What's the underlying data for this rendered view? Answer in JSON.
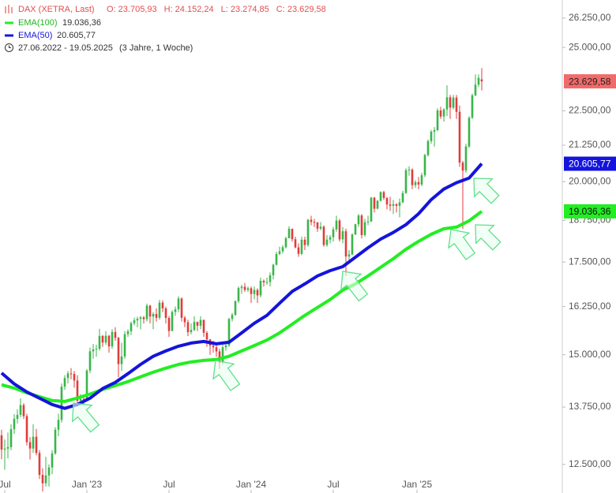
{
  "chart_data": {
    "type": "candlestick",
    "title": "DAX (XETRA, Last)",
    "header_values": [
      "O: 23.705,93",
      "H: 24.152,24",
      "L: 23.274,85",
      "C: 23.629,58"
    ],
    "date_range": "27.06.2022 - 19.05.2025",
    "period": "(3 Jahre, 1 Woche)",
    "last_label": "23.629,58",
    "last_color": "#f26a6a",
    "up_color": "#39b54a",
    "down_color": "#e03c3c",
    "log_scale": true,
    "grid": false,
    "ylim": [
      11920,
      27050
    ],
    "yticks": [
      {
        "value": 12500,
        "label": "12.500,00"
      },
      {
        "value": 13750,
        "label": "13.750,00"
      },
      {
        "value": 15000,
        "label": "15.000,00"
      },
      {
        "value": 16250,
        "label": "16.250,00"
      },
      {
        "value": 17500,
        "label": "17.500,00"
      },
      {
        "value": 18750,
        "label": "18.750,00"
      },
      {
        "value": 20000,
        "label": "20.000,00"
      },
      {
        "value": 21250,
        "label": "21.250,00"
      },
      {
        "value": 22500,
        "label": "22.500,00"
      },
      {
        "value": 25000,
        "label": "25.000,00"
      },
      {
        "value": 26250,
        "label": "26.250,00"
      }
    ],
    "xlim": [
      -0.5,
      152.5
    ],
    "xticks": [
      {
        "value": 1,
        "label": "Jul"
      },
      {
        "value": 27,
        "label": "Jan '23"
      },
      {
        "value": 53,
        "label": "Jul"
      },
      {
        "value": 79,
        "label": "Jan '24"
      },
      {
        "value": 105,
        "label": "Jul"
      },
      {
        "value": 131.5,
        "label": "Jan '25"
      }
    ],
    "open": [
      13120,
      12813,
      12833,
      12865,
      13254,
      13484,
      13573,
      13795,
      13544,
      12971,
      12834,
      13088,
      12741,
      12284,
      12114,
      12273,
      12437,
      12731,
      13243,
      13460,
      14224,
      14431,
      14541,
      14529,
      14370,
      13894,
      13940,
      13924,
      14610,
      15086,
      15133,
      15150,
      15476,
      15307,
      15482,
      15210,
      15578,
      15428,
      14768,
      14957,
      15522,
      15597,
      15808,
      15882,
      15922,
      15961,
      15914,
      16275,
      15983,
      16051,
      15950,
      16358,
      16201,
      15947,
      15603,
      16105,
      16177,
      16469,
      15952,
      15832,
      15574,
      15632,
      15840,
      15740,
      15894,
      15557,
      15387,
      15229,
      15187,
      15083,
      14798,
      15189,
      15234,
      15919,
      16029,
      16397,
      16759,
      16795,
      16706,
      16752,
      16594,
      16705,
      16555,
      16961,
      16918,
      16927,
      17117,
      17419,
      17735,
      17815,
      17936,
      18206,
      18492,
      18175,
      17930,
      17737,
      18161,
      18001,
      18773,
      18704,
      18693,
      18498,
      18557,
      18002,
      18164,
      18235,
      18476,
      18748,
      18171,
      18417,
      17661,
      17723,
      18322,
      18633,
      18906,
      18302,
      18699,
      18720,
      19474,
      19121,
      19373,
      19657,
      19464,
      19255,
      19215,
      19263,
      19211,
      19323,
      19626,
      20385,
      20405,
      19885,
      19985,
      19906,
      20215,
      20903,
      21395,
      21732,
      21787,
      22514,
      22287,
      22551,
      23009,
      22620,
      22999,
      22462,
      20642,
      20374,
      21206,
      22242,
      23087,
      23499,
      23705.93
    ],
    "high": [
      13240,
      13030,
      13180,
      13360,
      13590,
      13700,
      13950,
      13840,
      13600,
      13080,
      13360,
      13260,
      12800,
      12420,
      12660,
      12500,
      12800,
      13300,
      13600,
      14300,
      14500,
      14600,
      14670,
      14600,
      14500,
      14050,
      14030,
      14650,
      15180,
      15270,
      15250,
      15660,
      15500,
      15600,
      15500,
      15650,
      15700,
      15450,
      15300,
      15600,
      15650,
      15850,
      15950,
      15980,
      16000,
      16000,
      16330,
      16300,
      16100,
      16200,
      16430,
      16420,
      16250,
      16000,
      16150,
      16250,
      16530,
      16500,
      16000,
      15900,
      15800,
      15990,
      15850,
      15990,
      15900,
      15600,
      15400,
      15350,
      15250,
      15150,
      15250,
      15350,
      15950,
      16080,
      16420,
      16800,
      16850,
      16900,
      16800,
      16800,
      16800,
      16750,
      17050,
      17000,
      17050,
      17200,
      17450,
      17800,
      17950,
      18000,
      18250,
      18570,
      18500,
      18250,
      18050,
      18250,
      18250,
      18800,
      18900,
      18800,
      18700,
      18700,
      18600,
      18300,
      18300,
      18550,
      18900,
      18800,
      18550,
      18500,
      17850,
      18350,
      18650,
      18950,
      18950,
      18800,
      18900,
      19500,
      19500,
      19400,
      19680,
      19700,
      19500,
      19500,
      19400,
      19300,
      19450,
      19700,
      20450,
      20520,
      20450,
      20050,
      20150,
      20300,
      20950,
      21450,
      21800,
      21900,
      22600,
      22650,
      22600,
      23470,
      23100,
      23100,
      23100,
      22700,
      20700,
      21300,
      22300,
      23150,
      23900,
      23900,
      24152.24
    ],
    "low": [
      12610,
      12390,
      12625,
      12800,
      13150,
      13380,
      13520,
      13480,
      12900,
      12600,
      12740,
      12690,
      12200,
      11950,
      12050,
      12050,
      12300,
      12700,
      13100,
      13400,
      14150,
      14300,
      14400,
      14200,
      13800,
      13790,
      13800,
      13900,
      14550,
      14900,
      14950,
      15100,
      15200,
      15250,
      15050,
      15150,
      15350,
      14450,
      14600,
      14900,
      15450,
      15500,
      15750,
      15700,
      15650,
      15800,
      15850,
      15800,
      15650,
      15850,
      15900,
      16100,
      15800,
      15450,
      15600,
      16000,
      16100,
      15850,
      15700,
      15470,
      15520,
      15600,
      15600,
      15650,
      15450,
      15200,
      15000,
      15050,
      14950,
      14650,
      14750,
      15100,
      15200,
      15850,
      16000,
      16350,
      16600,
      16650,
      16650,
      16350,
      16450,
      16350,
      16500,
      16800,
      16850,
      16800,
      17000,
      17400,
      17700,
      17750,
      17900,
      18200,
      18100,
      17900,
      17650,
      17700,
      17850,
      17950,
      18600,
      18550,
      18400,
      18450,
      17950,
      17950,
      18050,
      18100,
      18400,
      18100,
      18050,
      17100,
      17500,
      17700,
      18300,
      18550,
      18200,
      18250,
      18600,
      18700,
      19000,
      19100,
      19350,
      19400,
      19100,
      19050,
      18950,
      19000,
      18850,
      19300,
      19600,
      20200,
      19750,
      19800,
      19750,
      19850,
      20150,
      20850,
      21300,
      21200,
      21750,
      22200,
      22100,
      22300,
      22200,
      22550,
      22200,
      20500,
      18490,
      20300,
      21150,
      22200,
      23050,
      23400,
      23274.85
    ],
    "close": [
      12813,
      12833,
      12865,
      13254,
      13484,
      13573,
      13795,
      13544,
      12971,
      12834,
      13088,
      12741,
      12284,
      12114,
      12273,
      12437,
      12731,
      13243,
      13460,
      14224,
      14431,
      14541,
      14529,
      14370,
      13894,
      13940,
      13924,
      14610,
      15086,
      15133,
      15150,
      15476,
      15307,
      15482,
      15210,
      15578,
      15428,
      14768,
      14957,
      15522,
      15597,
      15808,
      15882,
      15922,
      15961,
      15914,
      16275,
      15983,
      16051,
      15950,
      16358,
      16201,
      15947,
      15603,
      16105,
      16177,
      16469,
      15952,
      15832,
      15574,
      15632,
      15840,
      15740,
      15894,
      15557,
      15387,
      15229,
      15187,
      15083,
      14798,
      15189,
      15234,
      15919,
      16029,
      16397,
      16759,
      16795,
      16706,
      16752,
      16594,
      16705,
      16555,
      16961,
      16918,
      16927,
      17117,
      17419,
      17735,
      17815,
      17936,
      18206,
      18492,
      18175,
      17930,
      17737,
      18161,
      18001,
      18773,
      18704,
      18693,
      18498,
      18557,
      18002,
      18164,
      18235,
      18476,
      18748,
      18171,
      18417,
      17661,
      17723,
      18322,
      18633,
      18906,
      18302,
      18699,
      18720,
      19474,
      19121,
      19373,
      19657,
      19464,
      19255,
      19215,
      19263,
      19211,
      19323,
      19626,
      20385,
      20405,
      19885,
      19985,
      19906,
      20215,
      20903,
      21395,
      21732,
      21787,
      22514,
      22287,
      22551,
      23009,
      22620,
      22999,
      22462,
      20642,
      20374,
      21206,
      22242,
      23087,
      23499,
      23767,
      23629.58
    ],
    "series": [
      {
        "name": "EMA(100)",
        "color": "#22ee22",
        "value_label": "19.036,36",
        "x": [
          0,
          4,
          8,
          12,
          16,
          20,
          24,
          28,
          32,
          36,
          40,
          44,
          48,
          52,
          56,
          60,
          64,
          68,
          72,
          76,
          80,
          84,
          88,
          92,
          96,
          100,
          104,
          108,
          112,
          116,
          120,
          124,
          128,
          132,
          136,
          140,
          144,
          148,
          152
        ],
        "values": [
          14270,
          14190,
          14080,
          13990,
          13900,
          13880,
          13960,
          14050,
          14160,
          14250,
          14345,
          14460,
          14570,
          14670,
          14760,
          14820,
          14860,
          14880,
          14960,
          15095,
          15230,
          15370,
          15555,
          15780,
          16015,
          16225,
          16440,
          16700,
          16875,
          17100,
          17345,
          17595,
          17875,
          18110,
          18325,
          18495,
          18545,
          18740,
          19036.36
        ]
      },
      {
        "name": "EMA(50)",
        "color": "#1414dc",
        "value_label": "20.605,77",
        "x": [
          0,
          4,
          8,
          12,
          16,
          20,
          24,
          28,
          32,
          36,
          40,
          44,
          48,
          52,
          56,
          60,
          64,
          68,
          72,
          76,
          80,
          84,
          88,
          92,
          96,
          100,
          104,
          108,
          112,
          116,
          120,
          124,
          128,
          132,
          136,
          140,
          144,
          148,
          152
        ],
        "values": [
          14550,
          14290,
          14100,
          13955,
          13810,
          13720,
          13810,
          13955,
          14180,
          14325,
          14535,
          14760,
          14960,
          15095,
          15215,
          15295,
          15335,
          15275,
          15315,
          15555,
          15805,
          16015,
          16340,
          16665,
          16875,
          17100,
          17250,
          17365,
          17640,
          17920,
          18180,
          18380,
          18620,
          18960,
          19410,
          19755,
          19965,
          20120,
          20605.77
        ]
      }
    ]
  }
}
